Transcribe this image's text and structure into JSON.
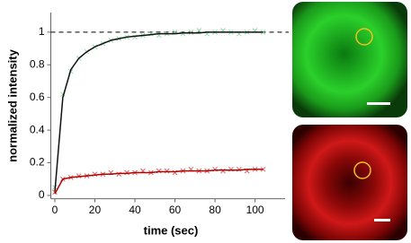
{
  "chart_data": {
    "type": "scatter",
    "xlabel": "time (sec)",
    "ylabel": "normalized intensity",
    "xlim": [
      -2,
      115
    ],
    "ylim": [
      -0.02,
      1.12
    ],
    "xticks": [
      0,
      20,
      40,
      60,
      80,
      100
    ],
    "yticks": [
      0,
      0.2,
      0.4,
      0.6,
      0.8,
      1
    ],
    "reference_line": 1,
    "x": [
      0,
      4,
      8,
      12,
      16,
      20,
      24,
      28,
      32,
      36,
      40,
      44,
      48,
      52,
      56,
      60,
      64,
      68,
      72,
      76,
      80,
      84,
      88,
      92,
      96,
      100,
      104
    ],
    "series": [
      {
        "color": "#8fdca8",
        "style": "points",
        "values": [
          0.05,
          0.62,
          0.76,
          0.84,
          0.88,
          0.91,
          0.93,
          0.95,
          0.96,
          0.97,
          0.97,
          0.98,
          0.99,
          0.98,
          0.99,
          1.0,
          0.99,
          1.0,
          1.01,
          0.99,
          1.0,
          1.01,
          1.0,
          0.99,
          1.0,
          1.01,
          1.0
        ]
      },
      {
        "color": "#111111",
        "style": "line",
        "values": [
          0.02,
          0.6,
          0.77,
          0.84,
          0.88,
          0.91,
          0.93,
          0.95,
          0.96,
          0.97,
          0.975,
          0.98,
          0.985,
          0.99,
          0.99,
          0.99,
          0.995,
          0.995,
          0.995,
          1,
          1,
          1,
          1,
          1,
          1,
          1,
          1
        ]
      },
      {
        "color": "#e06060",
        "style": "points",
        "values": [
          0.02,
          0.1,
          0.11,
          0.12,
          0.12,
          0.13,
          0.13,
          0.14,
          0.13,
          0.14,
          0.14,
          0.15,
          0.14,
          0.15,
          0.15,
          0.14,
          0.15,
          0.16,
          0.15,
          0.15,
          0.16,
          0.15,
          0.16,
          0.16,
          0.15,
          0.16,
          0.16
        ]
      },
      {
        "color": "#b00000",
        "style": "line",
        "values": [
          0.01,
          0.1,
          0.11,
          0.115,
          0.12,
          0.125,
          0.13,
          0.13,
          0.135,
          0.135,
          0.14,
          0.14,
          0.14,
          0.145,
          0.145,
          0.145,
          0.15,
          0.15,
          0.15,
          0.15,
          0.155,
          0.155,
          0.155,
          0.155,
          0.16,
          0.16,
          0.16
        ]
      }
    ]
  }
}
